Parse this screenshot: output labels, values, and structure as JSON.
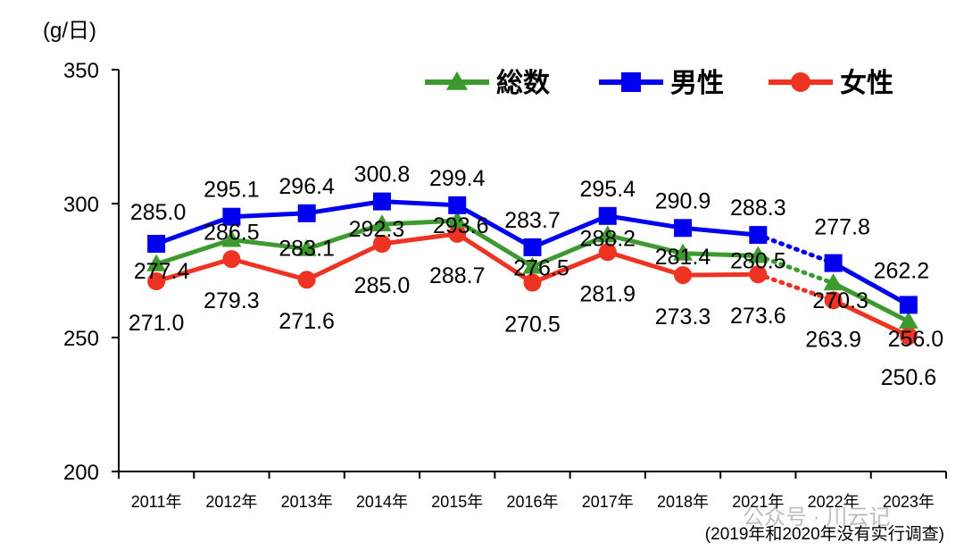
{
  "chart_data": {
    "type": "line",
    "ylabel": "(g/日)",
    "ylim": [
      200,
      350
    ],
    "yticks": [
      "200",
      "250",
      "300",
      "350"
    ],
    "categories": [
      "2011年",
      "2012年",
      "2013年",
      "2014年",
      "2015年",
      "2016年",
      "2017年",
      "2018年",
      "2021年",
      "2022年",
      "2023年"
    ],
    "series": [
      {
        "name": "総数",
        "color": "#3c9a2e",
        "marker": "triangle",
        "values": [
          277.4,
          286.5,
          283.1,
          292.3,
          293.6,
          276.5,
          288.2,
          281.4,
          280.5,
          270.3,
          256.0
        ],
        "labels": [
          "277.4",
          "286.5",
          "283.1",
          "292.3",
          "293.6",
          "276.5",
          "288.2",
          "281.4",
          "280.5",
          "270.3",
          "256.0"
        ]
      },
      {
        "name": "男性",
        "color": "#0000ee",
        "marker": "square",
        "values": [
          285.0,
          295.1,
          296.4,
          300.8,
          299.4,
          283.7,
          295.4,
          290.9,
          288.3,
          277.8,
          262.2
        ],
        "labels": [
          "285.0",
          "295.1",
          "296.4",
          "300.8",
          "299.4",
          "283.7",
          "295.4",
          "290.9",
          "288.3",
          "277.8",
          "262.2"
        ]
      },
      {
        "name": "女性",
        "color": "#ee3322",
        "marker": "circle",
        "values": [
          271.0,
          279.3,
          271.6,
          285.0,
          288.7,
          270.5,
          281.9,
          273.3,
          273.6,
          263.9,
          250.6
        ],
        "labels": [
          "271.0",
          "279.3",
          "271.6",
          "285.0",
          "288.7",
          "270.5",
          "281.9",
          "273.3",
          "273.6",
          "263.9",
          "250.6"
        ]
      }
    ],
    "dotted_gap_after": "2021年",
    "legend_position": "top-right",
    "grid": false,
    "note": "(2019年和2020年没有实行调查)"
  },
  "watermark": "公众号 · 川云记"
}
